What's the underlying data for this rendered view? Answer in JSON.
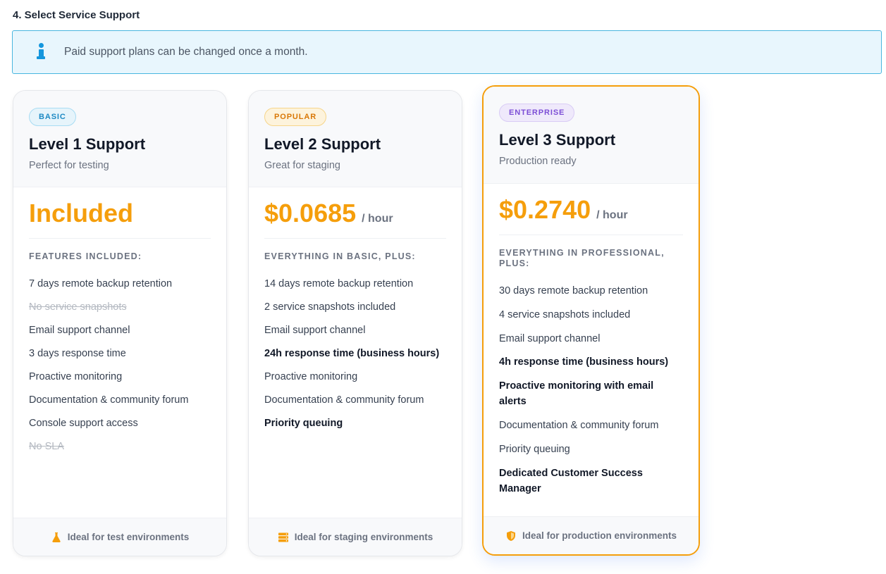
{
  "section": {
    "title": "4. Select Service Support"
  },
  "info": {
    "text": "Paid support plans can be changed once a month.",
    "icon": "info-icon"
  },
  "colors": {
    "accent": "#f59e0b",
    "info": "#1496dd"
  },
  "plans": [
    {
      "badge": "BASIC",
      "name": "Level 1 Support",
      "subtitle": "Perfect for testing",
      "price": "Included",
      "unit": "",
      "features_heading": "FEATURES INCLUDED:",
      "features": [
        "7 days remote backup retention",
        "No service snapshots",
        "Email support channel",
        "3 days response time",
        "Proactive monitoring",
        "Documentation & community forum",
        "Console support access",
        "No SLA"
      ],
      "footer_icon": "flask-icon",
      "footer": "Ideal for test environments"
    },
    {
      "badge": "POPULAR",
      "name": "Level 2 Support",
      "subtitle": "Great for staging",
      "price": "$0.0685",
      "unit": "/ hour",
      "features_heading": "EVERYTHING IN BASIC, PLUS:",
      "features": [
        "14 days remote backup retention",
        "2 service snapshots included",
        "Email support channel",
        "24h response time (business hours)",
        "Proactive monitoring",
        "Documentation & community forum",
        "Priority queuing"
      ],
      "footer_icon": "server-icon",
      "footer": "Ideal for staging environments"
    },
    {
      "badge": "ENTERPRISE",
      "name": "Level 3 Support",
      "subtitle": "Production ready",
      "price": "$0.2740",
      "unit": "/ hour",
      "features_heading": "EVERYTHING IN PROFESSIONAL, PLUS:",
      "features": [
        "30 days remote backup retention",
        "4 service snapshots included",
        "Email support channel",
        "4h response time (business hours)",
        "Proactive monitoring with email alerts",
        "Documentation & community forum",
        "Priority queuing",
        "Dedicated Customer Success Manager"
      ],
      "footer_icon": "shield-icon",
      "footer": "Ideal for production environments"
    }
  ]
}
